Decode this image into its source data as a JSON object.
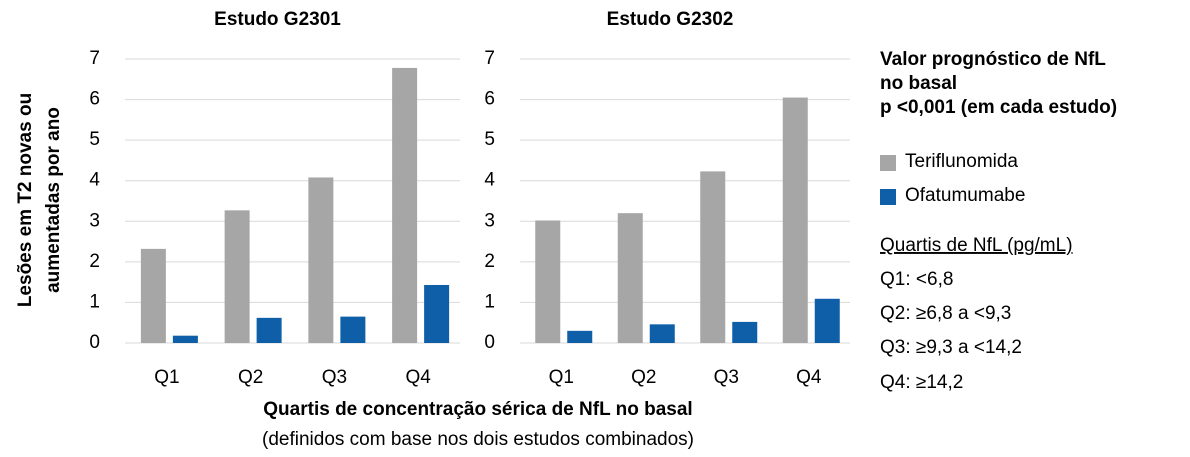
{
  "chart_data": [
    {
      "type": "bar",
      "title": "Estudo G2301",
      "categories": [
        "Q1",
        "Q2",
        "Q3",
        "Q4"
      ],
      "series": [
        {
          "name": "Teriflunomida",
          "color": "#a6a6a6",
          "values": [
            2.32,
            3.27,
            4.08,
            6.78
          ]
        },
        {
          "name": "Ofatumumabe",
          "color": "#0f5fa8",
          "values": [
            0.18,
            0.62,
            0.65,
            1.43
          ]
        }
      ],
      "ylim": [
        0,
        7
      ],
      "yticks": [
        0,
        1,
        2,
        3,
        4,
        5,
        6,
        7
      ],
      "grid": true
    },
    {
      "type": "bar",
      "title": "Estudo G2302",
      "categories": [
        "Q1",
        "Q2",
        "Q3",
        "Q4"
      ],
      "series": [
        {
          "color": "#a6a6a6",
          "values": [
            3.02,
            3.2,
            4.23,
            6.05
          ]
        },
        {
          "color": "#0f5fa8",
          "values": [
            0.3,
            0.46,
            0.52,
            1.09
          ]
        }
      ],
      "ylim": [
        0,
        7
      ],
      "yticks": [
        0,
        1,
        2,
        3,
        4,
        5,
        6,
        7
      ],
      "grid": true
    }
  ],
  "y_label_lines": [
    "Lesões em T2 novas ou",
    "aumentadas por ano"
  ],
  "x_label": "Quartis de concentração sérica de NfL no basal",
  "x_label_note": "(definidos com base nos dois estudos combinados)",
  "side_note": {
    "title_lines": [
      "Valor prognóstico de NfL",
      "no basal",
      "p <0,001 (em cada estudo)"
    ],
    "quartiles_title": "Quartis de NfL (pg/mL)",
    "quartiles": [
      "Q1:  <6,8",
      "Q2: ≥6,8 a <9,3",
      "Q3: ≥9,3 a <14,2",
      "Q4: ≥14,2"
    ]
  }
}
